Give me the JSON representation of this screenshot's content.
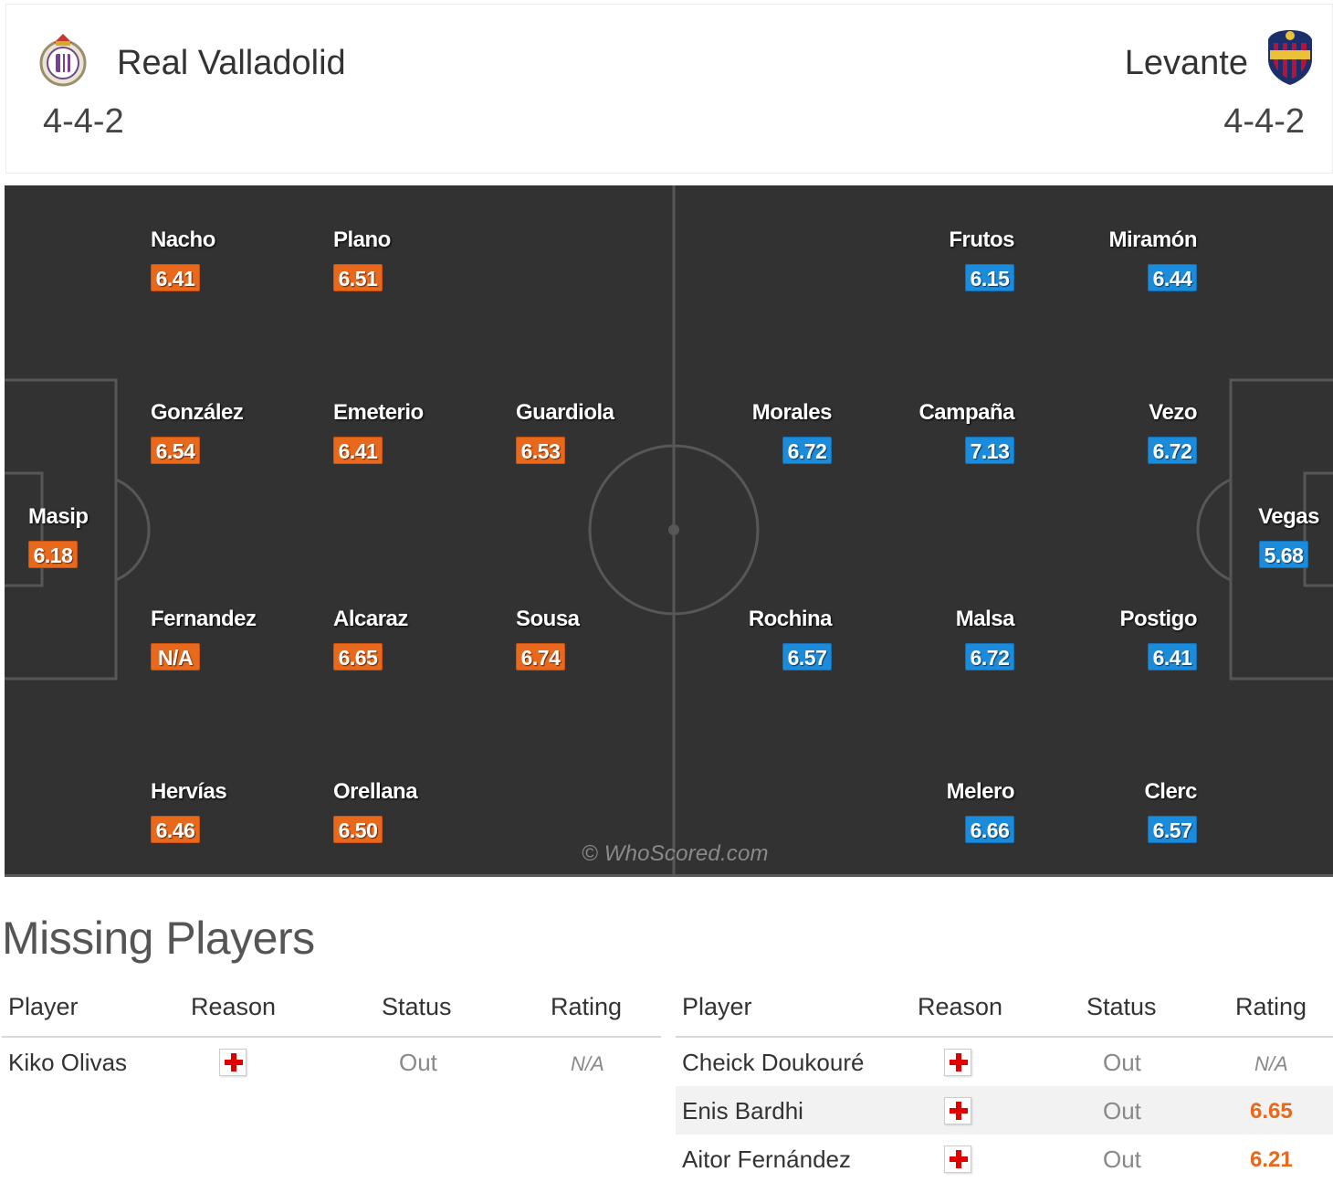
{
  "header": {
    "home": {
      "name": "Real Valladolid",
      "formation": "4-4-2",
      "crest": "real-valladolid-crest"
    },
    "away": {
      "name": "Levante",
      "formation": "4-4-2",
      "crest": "levante-crest"
    }
  },
  "pitch": {
    "watermark": "© WhoScored.com",
    "home_players": [
      {
        "name": "Nacho",
        "rating": "6.41"
      },
      {
        "name": "Plano",
        "rating": "6.51"
      },
      {
        "name": "González",
        "rating": "6.54"
      },
      {
        "name": "Emeterio",
        "rating": "6.41"
      },
      {
        "name": "Guardiola",
        "rating": "6.53"
      },
      {
        "name": "Masip",
        "rating": "6.18"
      },
      {
        "name": "Fernandez",
        "rating": "N/A"
      },
      {
        "name": "Alcaraz",
        "rating": "6.65"
      },
      {
        "name": "Sousa",
        "rating": "6.74"
      },
      {
        "name": "Hervías",
        "rating": "6.46"
      },
      {
        "name": "Orellana",
        "rating": "6.50"
      }
    ],
    "away_players": [
      {
        "name": "Frutos",
        "rating": "6.15"
      },
      {
        "name": "Miramón",
        "rating": "6.44"
      },
      {
        "name": "Morales",
        "rating": "6.72"
      },
      {
        "name": "Campaña",
        "rating": "7.13"
      },
      {
        "name": "Vezo",
        "rating": "6.72"
      },
      {
        "name": "Vegas",
        "rating": "5.68"
      },
      {
        "name": "Rochina",
        "rating": "6.57"
      },
      {
        "name": "Malsa",
        "rating": "6.72"
      },
      {
        "name": "Postigo",
        "rating": "6.41"
      },
      {
        "name": "Melero",
        "rating": "6.66"
      },
      {
        "name": "Clerc",
        "rating": "6.57"
      }
    ]
  },
  "missing": {
    "title": "Missing Players",
    "columns": {
      "player": "Player",
      "reason": "Reason",
      "status": "Status",
      "rating": "Rating"
    },
    "home": [
      {
        "player": "Kiko Olivas",
        "reason": "injury-icon",
        "status": "Out",
        "rating": "N/A"
      }
    ],
    "away": [
      {
        "player": "Cheick Doukouré",
        "reason": "injury-icon",
        "status": "Out",
        "rating": "N/A"
      },
      {
        "player": "Enis Bardhi",
        "reason": "injury-icon",
        "status": "Out",
        "rating": "6.65"
      },
      {
        "player": "Aitor Fernández",
        "reason": "injury-icon",
        "status": "Out",
        "rating": "6.21"
      }
    ]
  },
  "colors": {
    "home_rating": "#e8681c",
    "away_rating": "#1b8bdb",
    "pitch": "#323232",
    "injury": "#e00000"
  }
}
